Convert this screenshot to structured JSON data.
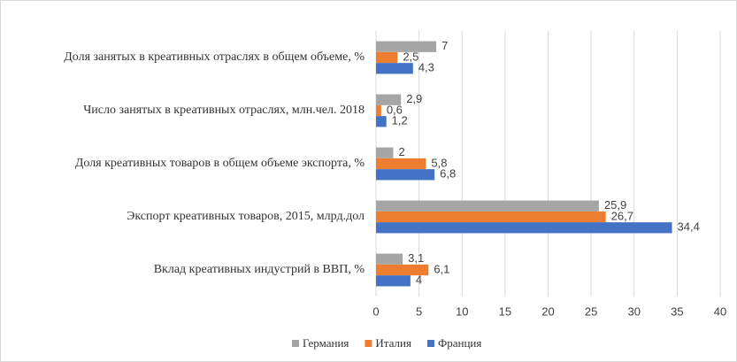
{
  "chart_data": {
    "type": "hbar",
    "categories": [
      "Доля занятых в креативных отраслях в общем объеме, %",
      "Число занятых в креативных отраслях, млн.чел.  2018",
      "Доля креативных товаров в общем объеме экспорта, %",
      "Экспорт креативных товаров, 2015, млрд.дол",
      "Вклад креативных  индустрий в ВВП, %"
    ],
    "series": [
      {
        "name": "Германия",
        "color": "#a5a5a5",
        "values": [
          7,
          2.9,
          2,
          25.9,
          3.1
        ],
        "value_labels": [
          "7",
          "2,9",
          "2",
          "25,9",
          "3,1"
        ]
      },
      {
        "name": "Италия",
        "color": "#ed7d31",
        "values": [
          2.5,
          0.6,
          5.8,
          26.7,
          6.1
        ],
        "value_labels": [
          "2,5",
          "0,6",
          "5,8",
          "26,7",
          "6,1"
        ]
      },
      {
        "name": "Франция",
        "color": "#4472c4",
        "values": [
          4.3,
          1.2,
          6.8,
          34.4,
          4
        ],
        "value_labels": [
          "4,3",
          "1,2",
          "6,8",
          "34,4",
          "4"
        ]
      }
    ],
    "xlim": [
      0,
      40
    ],
    "xticks": [
      0,
      5,
      10,
      15,
      20,
      25,
      30,
      35,
      40
    ],
    "grid": true,
    "legend": "bottom"
  }
}
